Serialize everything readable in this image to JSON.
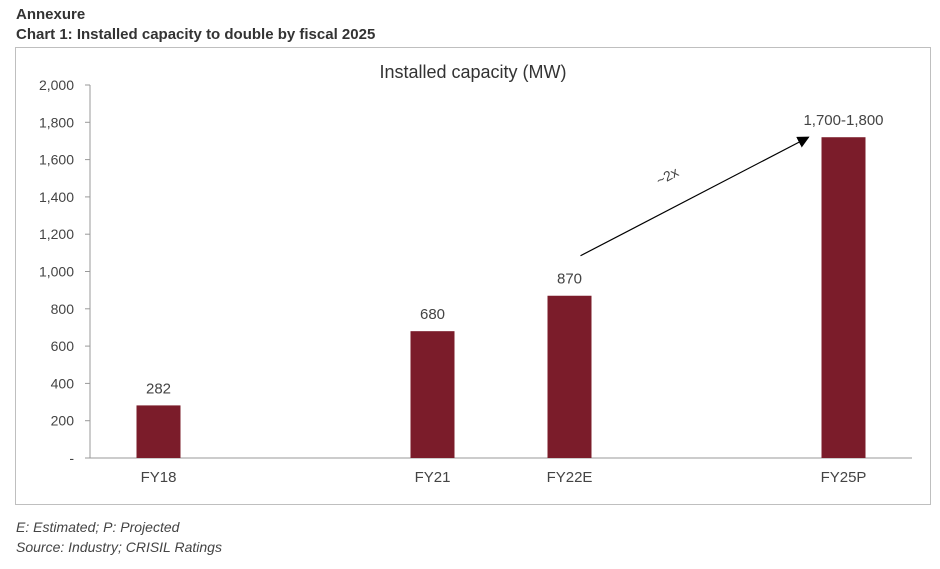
{
  "header": {
    "section": "Annexure",
    "chart_caption": "Chart 1: Installed capacity to double by fiscal 2025"
  },
  "footer": {
    "note": "E: Estimated; P: Projected",
    "source": "Source: Industry; CRISIL Ratings"
  },
  "chart_data": {
    "type": "bar",
    "title": "Installed capacity (MW)",
    "categories": [
      "FY18",
      "",
      "FY21",
      "FY22E",
      "",
      "FY25P"
    ],
    "values": [
      282,
      null,
      680,
      870,
      null,
      1720
    ],
    "data_labels": [
      "282",
      "",
      "680",
      "870",
      "",
      "1,700-1,800"
    ],
    "ylim": [
      0,
      2000
    ],
    "yticks": [
      0,
      200,
      400,
      600,
      800,
      1000,
      1200,
      1400,
      1600,
      1800,
      2000
    ],
    "ytick_labels": [
      "-",
      "200",
      "400",
      "600",
      "800",
      "1,000",
      "1,200",
      "1,400",
      "1,600",
      "1,800",
      "2,000"
    ],
    "grid": false,
    "bar_color": "#7b1c2a",
    "annotation": {
      "text": "~2x",
      "from_category": "FY22E",
      "to_category": "FY25P"
    }
  }
}
